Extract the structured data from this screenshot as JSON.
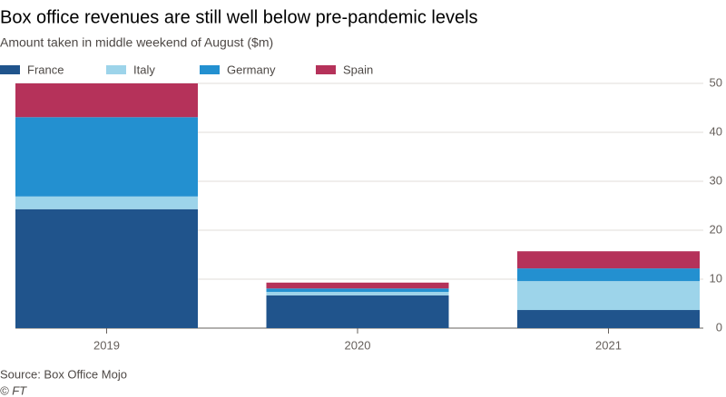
{
  "chart_data": {
    "type": "stacked_bar",
    "title": "Box office revenues are still well below pre-pandemic levels",
    "subtitle": "Amount taken in middle weekend of August ($m)",
    "categories": [
      "2019",
      "2020",
      "2021"
    ],
    "series": [
      {
        "name": "France",
        "color": "#20548c",
        "values": [
          24.3,
          6.7,
          3.7
        ]
      },
      {
        "name": "Italy",
        "color": "#9dd4ea",
        "values": [
          2.6,
          0.7,
          5.9
        ]
      },
      {
        "name": "Germany",
        "color": "#2390d0",
        "values": [
          16.2,
          0.7,
          2.6
        ]
      },
      {
        "name": "Spain",
        "color": "#b5325a",
        "values": [
          6.9,
          1.2,
          3.5
        ]
      }
    ],
    "ylim": [
      0,
      50
    ],
    "yticks": [
      0,
      10,
      20,
      30,
      40,
      50
    ],
    "grid": true,
    "source": "Source: Box Office Mojo",
    "credit": "© FT"
  }
}
